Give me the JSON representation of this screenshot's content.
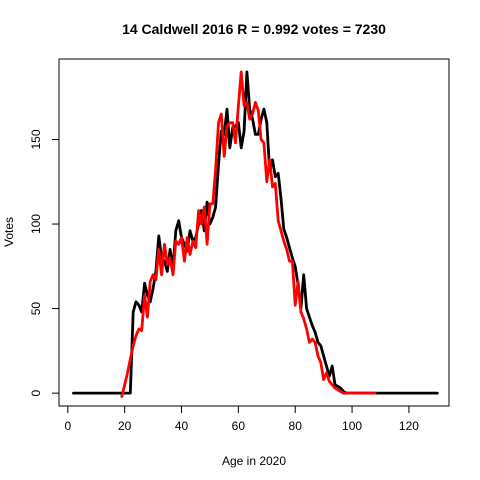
{
  "chart_data": {
    "type": "line",
    "title": "14 Caldwell 2016 R = 0.992 votes = 7230",
    "xlabel": "Age in 2020",
    "ylabel": "Votes",
    "xlim": [
      -3.1,
      134.1
    ],
    "ylim": [
      -7.6,
      197.6
    ],
    "xticks": [
      0,
      20,
      40,
      60,
      80,
      100,
      120
    ],
    "yticks": [
      0,
      50,
      100,
      150
    ],
    "grid": false,
    "legend": "none",
    "series": [
      {
        "color": "#000000",
        "x": [
          2,
          21,
          22,
          23,
          24,
          25,
          26,
          27,
          28,
          29,
          30,
          31,
          32,
          33,
          34,
          35,
          36,
          37,
          38,
          39,
          40,
          41,
          42,
          43,
          44,
          45,
          46,
          47,
          48,
          49,
          50,
          51,
          52,
          53,
          54,
          55,
          56,
          57,
          58,
          59,
          60,
          61,
          62,
          63,
          64,
          65,
          66,
          67,
          68,
          69,
          70,
          71,
          72,
          73,
          74,
          75,
          76,
          77,
          78,
          79,
          80,
          81,
          82,
          83,
          84,
          85,
          86,
          87,
          88,
          89,
          90,
          91,
          92,
          93,
          94,
          95,
          96,
          97,
          98,
          99,
          100,
          101,
          102,
          103,
          104,
          105,
          106,
          107,
          108,
          130
        ],
        "values": [
          0,
          0,
          0,
          48,
          54,
          52,
          48,
          65,
          58,
          54,
          62,
          72,
          93,
          80,
          78,
          72,
          85,
          74,
          96,
          102,
          92,
          88,
          84,
          96,
          90,
          92,
          100,
          108,
          96,
          113,
          100,
          104,
          110,
          135,
          155,
          153,
          168,
          145,
          157,
          158,
          160,
          145,
          155,
          190,
          168,
          162,
          153,
          153,
          162,
          168,
          160,
          132,
          138,
          128,
          130,
          115,
          97,
          92,
          86,
          80,
          75,
          64,
          50,
          70,
          50,
          45,
          40,
          36,
          30,
          28,
          22,
          16,
          10,
          16,
          5,
          4,
          3,
          1,
          0,
          0,
          0,
          0,
          0,
          0,
          0,
          0,
          0,
          0,
          0,
          0
        ]
      },
      {
        "color": "#ff0000",
        "x": [
          19,
          20,
          21,
          22,
          23,
          24,
          25,
          26,
          27,
          28,
          29,
          30,
          31,
          32,
          33,
          34,
          35,
          36,
          37,
          38,
          39,
          40,
          41,
          42,
          43,
          44,
          45,
          46,
          47,
          48,
          49,
          50,
          51,
          52,
          53,
          54,
          55,
          56,
          57,
          58,
          59,
          60,
          61,
          62,
          63,
          64,
          65,
          66,
          67,
          68,
          69,
          70,
          71,
          72,
          73,
          74,
          75,
          76,
          77,
          78,
          79,
          80,
          81,
          82,
          83,
          84,
          85,
          86,
          87,
          88,
          89,
          90,
          91,
          92,
          93,
          94,
          95,
          96,
          97,
          98,
          99,
          100,
          101,
          102,
          103,
          104,
          105,
          106,
          107,
          108
        ],
        "values": [
          -2,
          5,
          12,
          20,
          28,
          34,
          38,
          37,
          58,
          45,
          66,
          70,
          67,
          85,
          70,
          88,
          76,
          80,
          70,
          90,
          88,
          92,
          78,
          92,
          82,
          90,
          86,
          108,
          100,
          110,
          88,
          112,
          112,
          132,
          160,
          165,
          140,
          158,
          160,
          160,
          148,
          170,
          190,
          170,
          172,
          162,
          165,
          172,
          167,
          150,
          148,
          125,
          138,
          122,
          124,
          102,
          96,
          90,
          85,
          78,
          78,
          52,
          66,
          48,
          44,
          38,
          30,
          32,
          30,
          22,
          18,
          8,
          12,
          7,
          5,
          3,
          2,
          1,
          0,
          0,
          0,
          0,
          0,
          0,
          0,
          0,
          0,
          0,
          0,
          0
        ]
      }
    ]
  }
}
